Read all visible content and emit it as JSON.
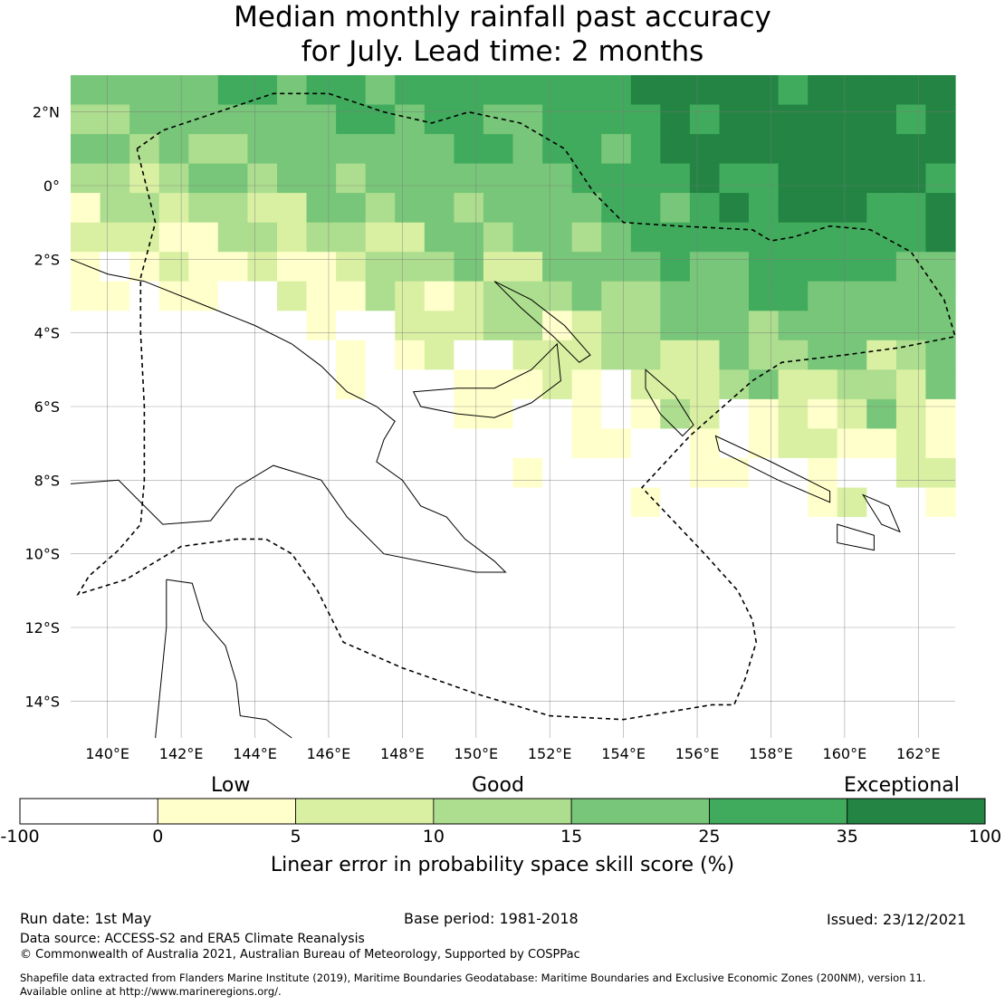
{
  "title": {
    "line1": "Median monthly rainfall past accuracy",
    "line2": "for July. Lead time: 2 months"
  },
  "map": {
    "lon_range": [
      139,
      163
    ],
    "lat_range": [
      -15,
      3
    ],
    "lon_ticks": [
      {
        "value": 140,
        "label": "140°E"
      },
      {
        "value": 142,
        "label": "142°E"
      },
      {
        "value": 144,
        "label": "144°E"
      },
      {
        "value": 146,
        "label": "146°E"
      },
      {
        "value": 148,
        "label": "148°E"
      },
      {
        "value": 150,
        "label": "150°E"
      },
      {
        "value": 152,
        "label": "152°E"
      },
      {
        "value": 154,
        "label": "154°E"
      },
      {
        "value": 156,
        "label": "156°E"
      },
      {
        "value": 158,
        "label": "158°E"
      },
      {
        "value": 160,
        "label": "160°E"
      },
      {
        "value": 162,
        "label": "162°E"
      }
    ],
    "lat_ticks": [
      {
        "value": 2,
        "label": "2°N"
      },
      {
        "value": 0,
        "label": "0°"
      },
      {
        "value": -2,
        "label": "2°S"
      },
      {
        "value": -4,
        "label": "4°S"
      },
      {
        "value": -6,
        "label": "6°S"
      },
      {
        "value": -8,
        "label": "8°S"
      },
      {
        "value": -10,
        "label": "10°S"
      },
      {
        "value": -12,
        "label": "12°S"
      },
      {
        "value": -14,
        "label": "14°S"
      }
    ],
    "colors": [
      "#ffffff",
      "#ffffcc",
      "#d9f0a3",
      "#addd8e",
      "#78c679",
      "#41ab5d",
      "#238443"
    ]
  },
  "colorbar": {
    "categories": [
      {
        "label": "Low",
        "center_value": 5
      },
      {
        "label": "Good",
        "center_value": 15
      },
      {
        "label": "Exceptional",
        "center_value": 100
      }
    ],
    "bounds": [
      "-100",
      "0",
      "5",
      "10",
      "15",
      "25",
      "35",
      "100"
    ],
    "colors": [
      "#ffffff",
      "#ffffcc",
      "#d9f0a3",
      "#addd8e",
      "#78c679",
      "#41ab5d",
      "#238443"
    ],
    "axis_label": "Linear error in probability space skill score (%)"
  },
  "footer": {
    "run_date": "Run date: 1st May",
    "base_period": "Base period: 1981-2018",
    "issued": "Issued: 23/12/2021",
    "data_source": "Data source: ACCESS-S2 and ERA5 Climate Reanalysis",
    "copyright": "© Commonwealth of Australia 2021, Australian Bureau of Meteorology, Supported by COSPPac",
    "shapefile_line1": "Shapefile data extracted from Flanders Marine Institute (2019), Maritime Boundaries Geodatabase: Maritime Boundaries and Exclusive Economic Zones (200NM), version 11.",
    "shapefile_line2": "Available online at http://www.marineregions.org/."
  }
}
